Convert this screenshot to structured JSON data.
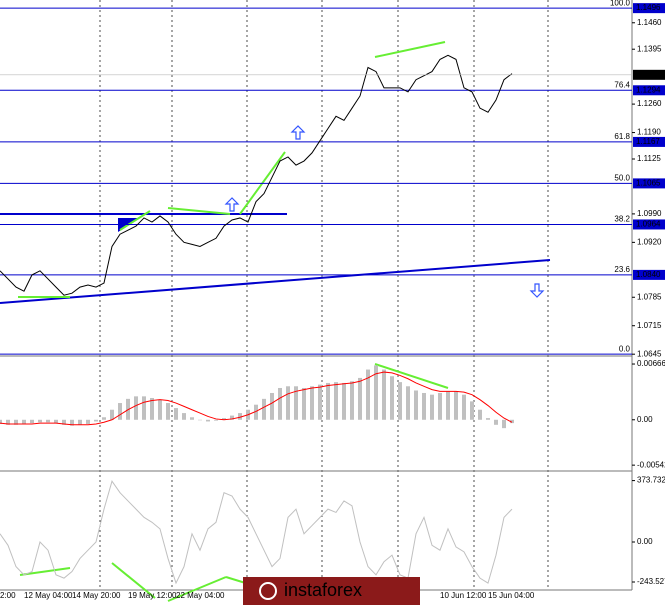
{
  "watermark": "instaforex",
  "chart_data": [
    {
      "type": "line",
      "categories": [
        "2:00",
        null,
        null,
        "12 May 04:00",
        null,
        null,
        null,
        null,
        null,
        "14 May 20:00",
        null,
        null,
        null,
        null,
        null,
        null,
        "19 May 12:00",
        null,
        null,
        null,
        null,
        null,
        "22 May 04:00",
        null,
        null,
        null,
        null,
        null,
        null,
        null,
        null,
        null,
        null,
        null,
        null,
        null,
        null,
        null,
        null,
        null,
        null,
        null,
        null,
        null,
        null,
        null,
        null,
        null,
        null,
        null,
        null,
        null,
        null,
        null,
        null,
        "10 Jun 12:00",
        null,
        null,
        null,
        null,
        null,
        "15 Jun 04:00",
        null,
        null,
        null
      ],
      "values": [
        1.085,
        1.083,
        1.081,
        1.08,
        1.084,
        1.085,
        1.083,
        1.081,
        1.079,
        1.0795,
        1.081,
        1.0815,
        1.081,
        1.082,
        1.091,
        1.094,
        1.095,
        1.096,
        1.098,
        1.097,
        1.0985,
        1.097,
        1.094,
        1.092,
        1.0915,
        1.091,
        1.092,
        1.093,
        1.096,
        1.0975,
        1.098,
        1.097,
        1.102,
        1.104,
        1.108,
        1.112,
        1.113,
        1.111,
        1.112,
        1.114,
        1.117,
        1.12,
        1.123,
        1.122,
        1.125,
        1.128,
        1.135,
        1.134,
        1.13,
        1.13,
        1.13,
        1.129,
        1.132,
        1.133,
        1.134,
        1.137,
        1.138,
        1.137,
        1.13,
        1.129,
        1.125,
        1.124,
        1.127,
        1.132,
        1.1335
      ],
      "color": "#000000",
      "ylim": [
        1.0643,
        1.1516
      ],
      "yticks": [
        {
          "value": 1.146,
          "label": "1.1460"
        },
        1.1395,
        {
          "value": 1.126,
          "label": "1.1260"
        },
        {
          "value": 1.119,
          "label": "1.1190"
        },
        1.1125,
        {
          "value": 1.099,
          "label": "1.0990"
        },
        {
          "value": 1.092,
          "label": "1.0920"
        },
        1.0785,
        1.0715,
        1.0645
      ],
      "current_price": 1.1332,
      "fib_levels": {
        "names": [
          "100.0",
          "76.4",
          "61.8",
          "50.0",
          "38.2",
          "23.6",
          "0.0"
        ],
        "values": [
          1.1496,
          1.1294,
          1.1167,
          1.1065,
          1.0964,
          1.084,
          1.0645
        ],
        "value_labels": [
          "1.1496",
          "1.1294",
          "1.1167",
          "1.1065",
          "1.0964",
          "1.0840",
          null
        ],
        "color": "#0000cc"
      }
    },
    {
      "type": "bar",
      "values": [
        -0.0005,
        -0.0006,
        -0.0006,
        -0.0005,
        -0.0004,
        -0.0003,
        -0.0003,
        -0.0004,
        -0.0006,
        -0.0007,
        -0.0006,
        -0.0005,
        -0.0002,
        0.0003,
        0.0012,
        0.002,
        0.0025,
        0.0028,
        0.0028,
        0.0026,
        0.0024,
        0.002,
        0.0014,
        0.0008,
        0.0003,
        0.0,
        -0.0002,
        -0.0001,
        0.0002,
        0.0005,
        0.0008,
        0.0012,
        0.0018,
        0.0025,
        0.0032,
        0.0038,
        0.004,
        0.004,
        0.0038,
        0.004,
        0.0042,
        0.0044,
        0.0045,
        0.0044,
        0.0046,
        0.005,
        0.006,
        0.0065,
        0.006,
        0.0052,
        0.0045,
        0.004,
        0.0035,
        0.0032,
        0.003,
        0.0032,
        0.0034,
        0.0034,
        0.003,
        0.0022,
        0.0012,
        0.0002,
        -0.0006,
        -0.001,
        -0.0004
      ],
      "color": "#c0c0c0",
      "signal_values": [
        -0.0004,
        -0.0005,
        -0.0005,
        -0.0005,
        -0.0005,
        -0.0004,
        -0.0004,
        -0.0004,
        -0.0005,
        -0.0006,
        -0.0006,
        -0.0006,
        -0.0005,
        -0.0003,
        0.0,
        0.0006,
        0.0012,
        0.0017,
        0.0021,
        0.0023,
        0.0024,
        0.0023,
        0.002,
        0.0016,
        0.0012,
        0.0008,
        0.0004,
        0.0001,
        0.0,
        0.0001,
        0.0003,
        0.0006,
        0.001,
        0.0015,
        0.002,
        0.0026,
        0.0031,
        0.0034,
        0.0036,
        0.0038,
        0.0039,
        0.0041,
        0.0042,
        0.0043,
        0.0044,
        0.0046,
        0.005,
        0.0055,
        0.0057,
        0.0056,
        0.0053,
        0.0049,
        0.0044,
        0.004,
        0.0036,
        0.0034,
        0.0034,
        0.0034,
        0.0033,
        0.003,
        0.0024,
        0.0017,
        0.0009,
        0.0002,
        -0.0003
      ],
      "signal_color": "#ff0000",
      "ylim": [
        -0.006,
        0.0075
      ],
      "yticks": [
        0.00666,
        {
          "value": 0,
          "label": "0.00"
        },
        -0.00542
      ]
    },
    {
      "type": "line",
      "values": [
        50,
        -20,
        -150,
        -200,
        -180,
        0,
        -50,
        -200,
        -220,
        -180,
        -100,
        -50,
        0,
        200,
        370,
        300,
        250,
        200,
        150,
        120,
        80,
        -100,
        -250,
        -150,
        50,
        -50,
        80,
        120,
        300,
        280,
        200,
        150,
        50,
        -50,
        -150,
        -100,
        150,
        200,
        50,
        100,
        150,
        200,
        180,
        250,
        220,
        0,
        -150,
        -200,
        -120,
        -80,
        -200,
        -220,
        50,
        150,
        -20,
        -50,
        80,
        -30,
        -60,
        -150,
        -220,
        -250,
        -80,
        150,
        200
      ],
      "color": "#c0c0c0",
      "ylim": [
        -353,
        426
      ],
      "yticks": [
        373.7321,
        {
          "value": 0,
          "label": "0.00"
        },
        {
          "value": -243.527,
          "label": "-243.5270"
        }
      ]
    }
  ]
}
